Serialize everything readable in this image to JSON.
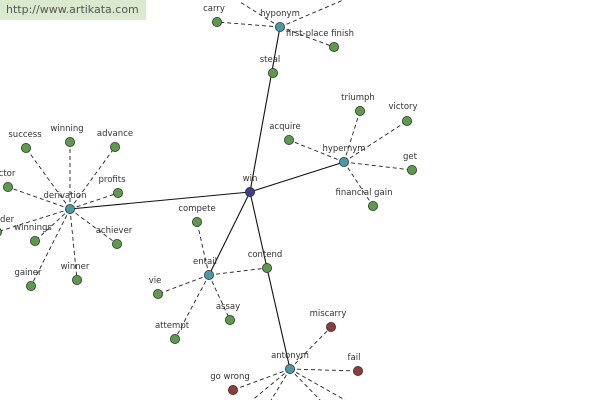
{
  "watermark": "http://www.artikata.com",
  "nodes": [
    {
      "label": "win"
    },
    {
      "label": "hyponym"
    },
    {
      "label": "carry"
    },
    {
      "label": "first-place finish"
    },
    {
      "label": "steal"
    },
    {
      "label": "hypernym"
    },
    {
      "label": "triumph"
    },
    {
      "label": "victory"
    },
    {
      "label": "get"
    },
    {
      "label": "financial gain"
    },
    {
      "label": "acquire"
    },
    {
      "label": "derivation"
    },
    {
      "label": "success"
    },
    {
      "label": "winning"
    },
    {
      "label": "advance"
    },
    {
      "label": "profits"
    },
    {
      "label": "achiever"
    },
    {
      "label": "winner"
    },
    {
      "label": "gainer"
    },
    {
      "label": "winnings"
    },
    {
      "label": "der"
    },
    {
      "label": "ctor"
    },
    {
      "label": "entail"
    },
    {
      "label": "compete"
    },
    {
      "label": "vie"
    },
    {
      "label": "attempt"
    },
    {
      "label": "assay"
    },
    {
      "label": "contend"
    },
    {
      "label": "antonym"
    },
    {
      "label": "miscarry"
    },
    {
      "label": "fail"
    },
    {
      "label": "go wrong"
    }
  ]
}
